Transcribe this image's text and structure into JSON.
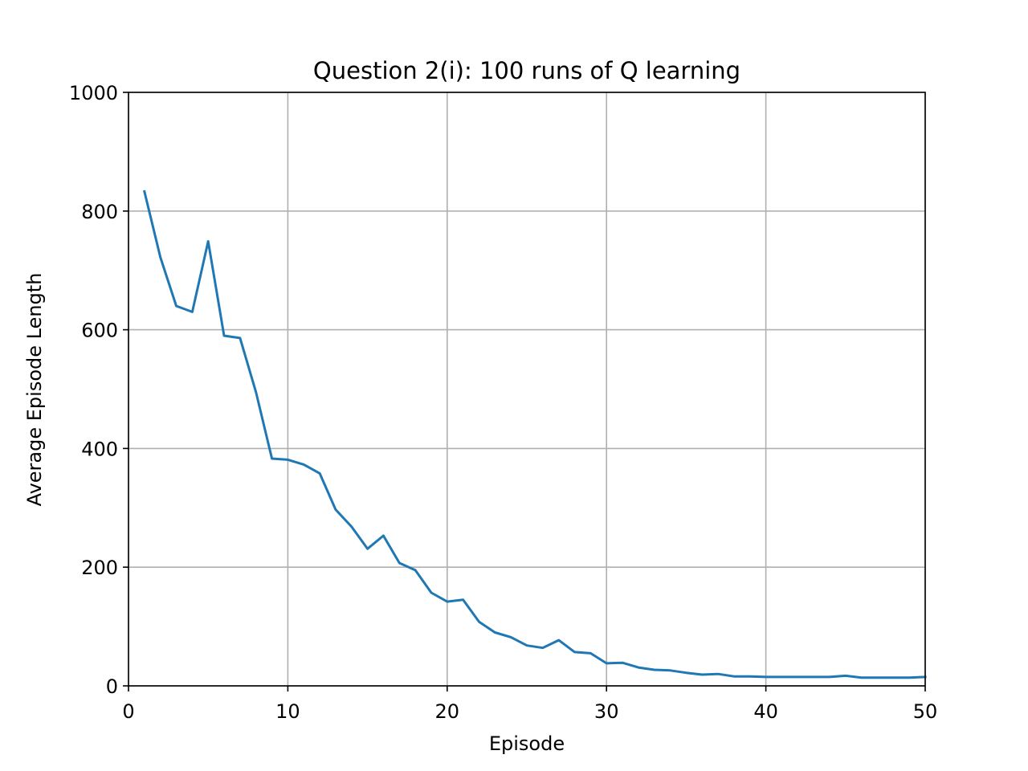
{
  "chart_data": {
    "type": "line",
    "title": "Question 2(i): 100 runs of Q learning",
    "xlabel": "Episode",
    "ylabel": "Average Episode Length",
    "xlim": [
      0,
      50
    ],
    "ylim": [
      0,
      1000
    ],
    "grid": true,
    "xticks": [
      "0",
      "10",
      "20",
      "30",
      "40",
      "50"
    ],
    "yticks": [
      "0",
      "200",
      "400",
      "600",
      "800",
      "1000"
    ],
    "line_color": "#1f77b4",
    "grid_color": "#b0b0b0",
    "series": [
      {
        "x": [
          1,
          2,
          3,
          4,
          5,
          6,
          7,
          8,
          9,
          10,
          11,
          12,
          13,
          14,
          15,
          16,
          17,
          18,
          19,
          20,
          21,
          22,
          23,
          24,
          25,
          26,
          27,
          28,
          29,
          30,
          31,
          32,
          33,
          34,
          35,
          36,
          37,
          38,
          39,
          40,
          41,
          42,
          43,
          44,
          45,
          46,
          47,
          48,
          49,
          50
        ],
        "values": [
          833,
          722,
          640,
          630,
          749,
          590,
          586,
          495,
          383,
          381,
          373,
          358,
          297,
          268,
          231,
          253,
          207,
          195,
          157,
          142,
          145,
          108,
          90,
          82,
          68,
          64,
          77,
          57,
          55,
          38,
          39,
          31,
          27,
          26,
          22,
          19,
          20,
          16,
          16,
          15,
          15,
          15,
          15,
          15,
          17,
          14,
          14,
          14,
          14,
          15
        ]
      }
    ]
  }
}
